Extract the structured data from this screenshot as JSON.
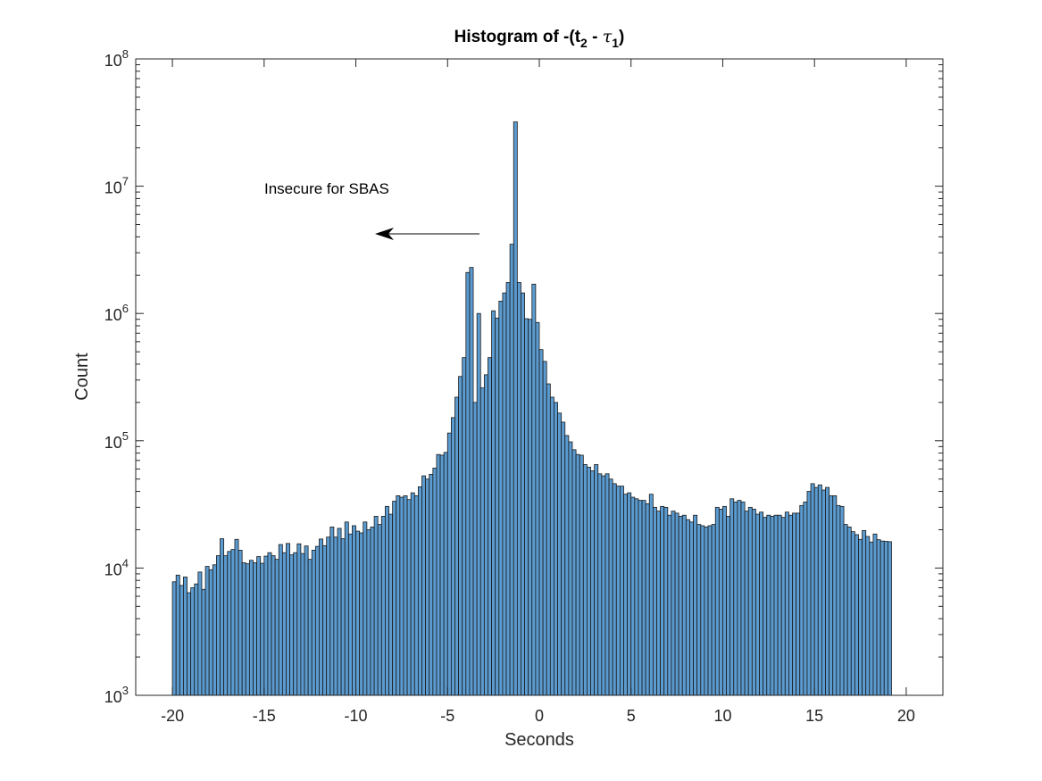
{
  "chart_data": {
    "type": "bar",
    "title": {
      "prefix": "Histogram of -(t",
      "sub1": "2",
      "middle": " - ",
      "tau": "τ",
      "sub2": "1",
      "suffix": ")"
    },
    "xlabel": "Seconds",
    "ylabel": "Count",
    "yscale": "log",
    "xlim": [
      -22,
      22
    ],
    "ylim": [
      1000,
      100000000
    ],
    "xticks": [
      -20,
      -15,
      -10,
      -5,
      0,
      5,
      10,
      15,
      20
    ],
    "xtick_labels": [
      "-20",
      "-15",
      "-10",
      "-5",
      "0",
      "5",
      "10",
      "15",
      "20"
    ],
    "ytick_exponents": [
      3,
      4,
      5,
      6,
      7,
      8
    ],
    "ytick_base": "10",
    "bin_width": 0.2,
    "bin_start": -20,
    "bar_color": "#5b9bd0",
    "edge_color": "#1a1a1a",
    "grid": false,
    "values": [
      7800,
      8800,
      7300,
      8500,
      6400,
      7000,
      7500,
      9300,
      6800,
      10300,
      9700,
      10600,
      12500,
      17000,
      12500,
      13500,
      14000,
      16800,
      13800,
      11000,
      10800,
      11500,
      11000,
      12300,
      10900,
      12400,
      13200,
      12500,
      11700,
      15300,
      13200,
      15600,
      12700,
      13200,
      15500,
      13000,
      14900,
      11700,
      13800,
      14800,
      16900,
      15000,
      17500,
      21000,
      17500,
      20500,
      17000,
      23000,
      18500,
      21500,
      19500,
      18900,
      23000,
      20000,
      21000,
      25500,
      22000,
      25500,
      30500,
      26500,
      33500,
      37000,
      36000,
      37000,
      34500,
      39000,
      37000,
      43500,
      53000,
      50000,
      54500,
      61000,
      78000,
      77000,
      81000,
      115000,
      152000,
      220000,
      320000,
      450000,
      2100000,
      2300000,
      200000,
      1000000,
      260000,
      330000,
      450000,
      1050000,
      920000,
      1250000,
      1450000,
      1750000,
      3500000,
      32000000,
      1750000,
      1450000,
      910000,
      900000,
      1700000,
      850000,
      520000,
      420000,
      280000,
      220000,
      200000,
      165000,
      140000,
      110000,
      98000,
      85000,
      78000,
      77000,
      65000,
      62000,
      58000,
      65000,
      55000,
      53000,
      55000,
      50000,
      46000,
      44000,
      44000,
      38000,
      39000,
      36000,
      35000,
      34000,
      34000,
      32000,
      38000,
      30000,
      28000,
      30500,
      30000,
      26000,
      28000,
      27000,
      25500,
      26000,
      24000,
      23000,
      26000,
      22000,
      21500,
      21000,
      21500,
      22000,
      30000,
      29000,
      30500,
      25500,
      35000,
      33000,
      34000,
      33000,
      28000,
      30000,
      29000,
      26500,
      27500,
      25000,
      26000,
      25500,
      26000,
      26000,
      25000,
      27500,
      26000,
      27000,
      27000,
      31000,
      33000,
      40000,
      46000,
      43000,
      45000,
      41000,
      43000,
      37000,
      37000,
      31000,
      30500,
      22000,
      21000,
      19300,
      18300,
      16800,
      19700,
      17700,
      16000,
      18500,
      16700,
      16300,
      16200,
      16100
    ]
  },
  "annotation": {
    "text": "Insecure for SBAS"
  }
}
